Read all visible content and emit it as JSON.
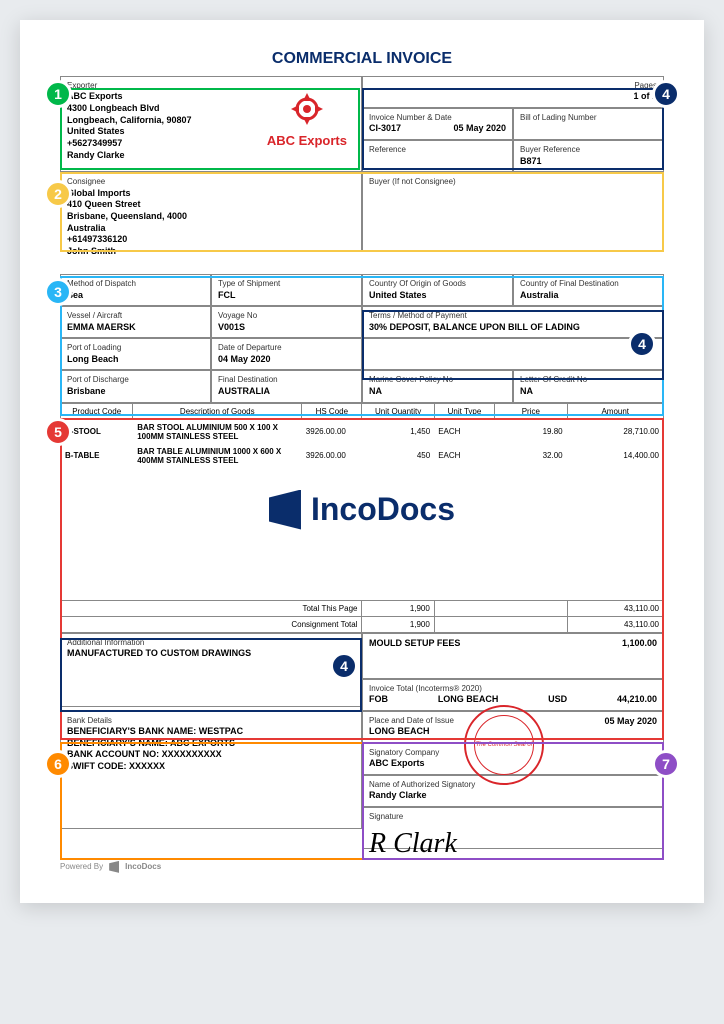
{
  "title": "COMMERCIAL INVOICE",
  "colors": {
    "badge1": "#00b84a",
    "badge2": "#f7c948",
    "badge3": "#29b6f6",
    "badge4": "#0a2d6b",
    "badge5": "#e53935",
    "badge6": "#ff8a00",
    "badge7": "#8e4ec6",
    "abc_red": "#d9252a",
    "navy": "#0a2d6b"
  },
  "exporter": {
    "lbl": "Exporter",
    "name": "ABC Exports",
    "addr1": "4300 Longbeach Blvd",
    "addr2": "Longbeach, California, 90807",
    "country": "United States",
    "phone": "+5627349957",
    "contact": "Randy Clarke",
    "logo_text": "ABC Exports"
  },
  "pages": {
    "lbl": "Pages",
    "val": "1 of 1"
  },
  "inv": {
    "lbl": "Invoice Number & Date",
    "no": "CI-3017",
    "date": "05 May 2020"
  },
  "bol": {
    "lbl": "Bill of Lading Number",
    "val": ""
  },
  "ref": {
    "lbl": "Reference",
    "val": ""
  },
  "buyref": {
    "lbl": "Buyer Reference",
    "val": "B871"
  },
  "consignee": {
    "lbl": "Consignee",
    "name": "Global Imports",
    "addr1": "410 Queen Street",
    "addr2": "Brisbane, Queensland, 4000",
    "country": "Australia",
    "phone": "+61497336120",
    "contact": "John Smith"
  },
  "buyer": {
    "lbl": "Buyer (If not Consignee)",
    "val": ""
  },
  "ship": {
    "dispatch": {
      "lbl": "Method of Dispatch",
      "val": "Sea"
    },
    "type": {
      "lbl": "Type of Shipment",
      "val": "FCL"
    },
    "origin": {
      "lbl": "Country Of Origin of Goods",
      "val": "United States"
    },
    "dest": {
      "lbl": "Country of Final Destination",
      "val": "Australia"
    },
    "vessel": {
      "lbl": "Vessel / Aircraft",
      "val": "EMMA MAERSK"
    },
    "voyage": {
      "lbl": "Voyage No",
      "val": "V001S"
    },
    "terms": {
      "lbl": "Terms / Method of Payment",
      "val": "30% DEPOSIT, BALANCE UPON BILL OF LADING"
    },
    "pol": {
      "lbl": "Port of Loading",
      "val": "Long Beach"
    },
    "dep": {
      "lbl": "Date of Departure",
      "val": "04 May 2020"
    },
    "pod": {
      "lbl": "Port of Discharge",
      "val": "Brisbane"
    },
    "final": {
      "lbl": "Final Destination",
      "val": "AUSTRALIA"
    },
    "policy": {
      "lbl": "Marine Cover Policy No",
      "val": "NA"
    },
    "lc": {
      "lbl": "Letter Of Credit No",
      "val": "NA"
    }
  },
  "cols": [
    "Product Code",
    "Description of Goods",
    "HS Code",
    "Unit Quantity",
    "Unit Type",
    "Price",
    "Amount"
  ],
  "items": [
    {
      "code": "B-STOOL",
      "desc": "BAR STOOL ALUMINIUM 500 X 100 X 100MM STAINLESS STEEL",
      "hs": "3926.00.00",
      "qty": "1,450",
      "unit": "EACH",
      "price": "19.80",
      "amt": "28,710.00"
    },
    {
      "code": "B-TABLE",
      "desc": "BAR TABLE ALUMINIUM 1000 X 600 X 400MM STAINLESS STEEL",
      "hs": "3926.00.00",
      "qty": "450",
      "unit": "EACH",
      "price": "32.00",
      "amt": "14,400.00"
    }
  ],
  "totals": {
    "page_lbl": "Total This Page",
    "page_qty": "1,900",
    "page_amt": "43,110.00",
    "cons_lbl": "Consignment Total",
    "cons_qty": "1,900",
    "cons_amt": "43,110.00"
  },
  "addl": {
    "lbl": "Additional Information",
    "val": "MANUFACTURED TO CUSTOM DRAWINGS"
  },
  "fees": {
    "lbl": "MOULD SETUP FEES",
    "val": "1,100.00"
  },
  "invtotal": {
    "lbl": "Invoice Total (Incoterms® 2020)",
    "term": "FOB",
    "place": "LONG BEACH",
    "cur": "USD",
    "amt": "44,210.00"
  },
  "bank": {
    "lbl": "Bank Details",
    "l1": "BENEFICIARY'S BANK NAME:  WESTPAC",
    "l2": "BENEFICIARY'S NAME:  ABC EXPORTS",
    "l3": "BANK ACCOUNT NO: XXXXXXXXXX",
    "l4": "SWIFT CODE: XXXXXX"
  },
  "signblock": {
    "place_lbl": "Place and Date of Issue",
    "place": "LONG BEACH",
    "date": "05 May 2020",
    "company_lbl": "Signatory Company",
    "company": "ABC Exports",
    "name_lbl": "Name of Authorized Signatory",
    "name": "Randy Clarke",
    "sig_lbl": "Signature"
  },
  "seal": {
    "top": "ABC EXPORTS PTY LTD",
    "center": "The Common Seal of",
    "bottom": "A.C.N. 86124239"
  },
  "watermark": "IncoDocs",
  "footer": {
    "powered": "Powered By",
    "brand": "IncoDocs"
  }
}
